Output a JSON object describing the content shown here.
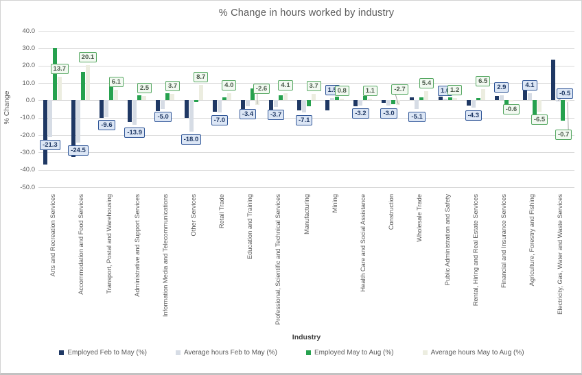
{
  "title": "% Change in hours worked by industry",
  "y_axis": {
    "title": "% Change",
    "ticks": [
      "40.0",
      "30.0",
      "20.0",
      "10.0",
      "0.0",
      "-10.0",
      "-20.0",
      "-30.0",
      "-40.0",
      "-50.0"
    ],
    "tick_values": [
      40,
      30,
      20,
      10,
      0,
      -10,
      -20,
      -30,
      -40,
      -50
    ]
  },
  "x_axis": {
    "title": "Industry"
  },
  "colors": {
    "employed_feb_may": "#1f3864",
    "avg_hours_feb_may": "#d6dce5",
    "employed_may_aug": "#26a14e",
    "avg_hours_may_aug": "#ecede0",
    "gridline": "#d9d9d9",
    "axis_text": "#595959",
    "blue_label_border": "#2f5597",
    "blue_label_fill": "#dce6f5",
    "green_label_border": "#56a862",
    "green_label_fill": "#f2f9f1"
  },
  "legend": [
    {
      "label": "Employed Feb to May (%)",
      "color": "#1f3864"
    },
    {
      "label": "Average hours Feb to May (%)",
      "color": "#d6dce5"
    },
    {
      "label": "Employed May to Aug (%)",
      "color": "#26a14e"
    },
    {
      "label": "Average hours May to Aug (%)",
      "color": "#ecede0"
    }
  ],
  "chart_data": {
    "type": "bar",
    "title": "% Change in hours worked by industry",
    "xlabel": "Industry",
    "ylabel": "% Change",
    "ylim": [
      -50,
      40
    ],
    "grid": true,
    "legend_position": "bottom",
    "categories": [
      "Arts and Recreation Services",
      "Accommodation and Food Services",
      "Transport, Postal and Warehousing",
      "Administrative and Support Services",
      "Information Media and Telecommunications",
      "Other Services",
      "Retail Trade",
      "Education and Training",
      "Professional, Scientific and Technical Services",
      "Manufacturing",
      "Mining",
      "Health Care and Social Assistance",
      "Construction",
      "Wholesale Trade",
      "Public Administration and Safety",
      "Rental, Hiring and Real Estate Services",
      "Financial and Insurance Services",
      "Agriculture, Forestry and Fishing",
      "Electricity, Gas, Water and Waste Services"
    ],
    "series": [
      {
        "name": "Employed Feb to May (%)",
        "color": "#1f3864",
        "labeled": false,
        "values": [
          -36.8,
          -32.5,
          -10.0,
          -12.4,
          -6.2,
          -10.0,
          -6.5,
          -5.6,
          -5.5,
          -5.9,
          -5.7,
          -3.6,
          -1.5,
          1.9,
          2.0,
          -3.1,
          2.6,
          8.5,
          23.6
        ]
      },
      {
        "name": "Average hours Feb to May (%)",
        "color": "#d6dce5",
        "labeled": true,
        "label_style": "blue",
        "values": [
          -21.3,
          -24.5,
          -9.6,
          -13.9,
          -5.0,
          -18.0,
          -7.0,
          -3.4,
          -3.7,
          -7.1,
          1.5,
          -3.2,
          -3.0,
          -5.1,
          1.0,
          -4.3,
          2.9,
          4.1,
          -0.5
        ]
      },
      {
        "name": "Employed May to Aug (%)",
        "color": "#26a14e",
        "labeled": false,
        "values": [
          30.0,
          16.2,
          8.0,
          3.0,
          4.0,
          -1.0,
          1.7,
          7.0,
          3.0,
          -3.5,
          2.0,
          2.6,
          -2.3,
          1.9,
          1.8,
          1.5,
          -2.3,
          -9.0,
          -11.8
        ]
      },
      {
        "name": "Average hours May to Aug (%)",
        "color": "#ecede0",
        "labeled": true,
        "label_style": "green",
        "values": [
          13.7,
          20.1,
          6.1,
          2.5,
          3.7,
          8.7,
          4.0,
          -2.6,
          4.1,
          3.7,
          0.8,
          1.1,
          -2.7,
          5.4,
          1.2,
          6.5,
          -0.6,
          -6.5,
          -0.7
        ]
      }
    ],
    "label_overrides": [
      {
        "series": 3,
        "index": 7,
        "box_y": 121,
        "dx": 6,
        "leader": true
      },
      {
        "series": 3,
        "index": 12,
        "box_y": 122,
        "dx": 2,
        "leader": true
      },
      {
        "series": 1,
        "index": 18,
        "box_y": 128,
        "dx": 10,
        "leader": true
      },
      {
        "series": 3,
        "index": 18,
        "box_y": 188,
        "dx": -6,
        "leader": true
      }
    ]
  }
}
